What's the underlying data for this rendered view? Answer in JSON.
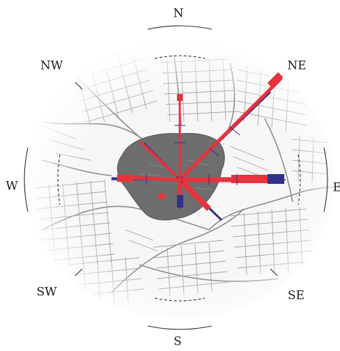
{
  "directions": {
    "n": "N",
    "ne": "NE",
    "e": "E",
    "se": "SE",
    "s": "S",
    "sw": "SW",
    "w": "W",
    "nw": "NW"
  },
  "colors": {
    "background": "#ffffff",
    "street_lines": "#9a9a9a",
    "street_area": "#f1f1f1",
    "central_zone": "#6e6e6e",
    "series_red": "#e8323c",
    "series_blue": "#30308a",
    "arc_lines": "#2a2a2a"
  }
}
